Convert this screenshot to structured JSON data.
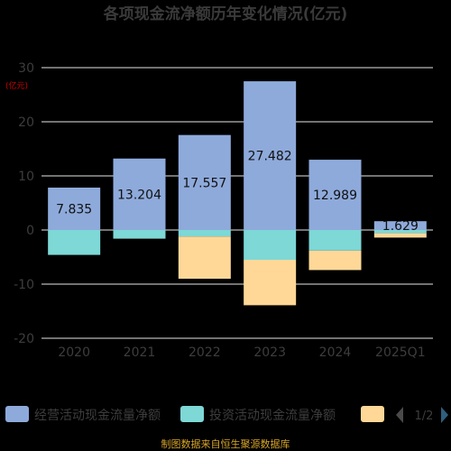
{
  "chart_data": {
    "type": "bar",
    "title": "各项现金流净额历年变化情况(亿元)",
    "ylabel": "(亿元)",
    "categories": [
      "2020",
      "2021",
      "2022",
      "2023",
      "2024",
      "2025Q1"
    ],
    "ylim": [
      -20,
      30
    ],
    "yticks": [
      -20,
      -10,
      0,
      10,
      20,
      30
    ],
    "grid": true,
    "stacked": true,
    "series": [
      {
        "name": "经营活动现金流量净额",
        "color": "#8eaadb",
        "values": [
          7.835,
          13.204,
          17.557,
          27.482,
          12.989,
          1.629
        ],
        "labels": [
          "7.835",
          "13.204",
          "17.557",
          "27.482",
          "12.989",
          "1.629"
        ]
      },
      {
        "name": "投资活动现金流量净额",
        "color": "#7dd8d6",
        "values": [
          -4.6,
          -1.6,
          -1.2,
          -5.5,
          -3.8,
          -0.6
        ]
      },
      {
        "name": "",
        "color": "#ffd898",
        "values": [
          0,
          0,
          -7.8,
          -8.4,
          -3.6,
          -0.8
        ]
      }
    ],
    "legend": {
      "position": "bottom",
      "page": "1/2"
    }
  },
  "footer": "制图数据来自恒生聚源数据库"
}
